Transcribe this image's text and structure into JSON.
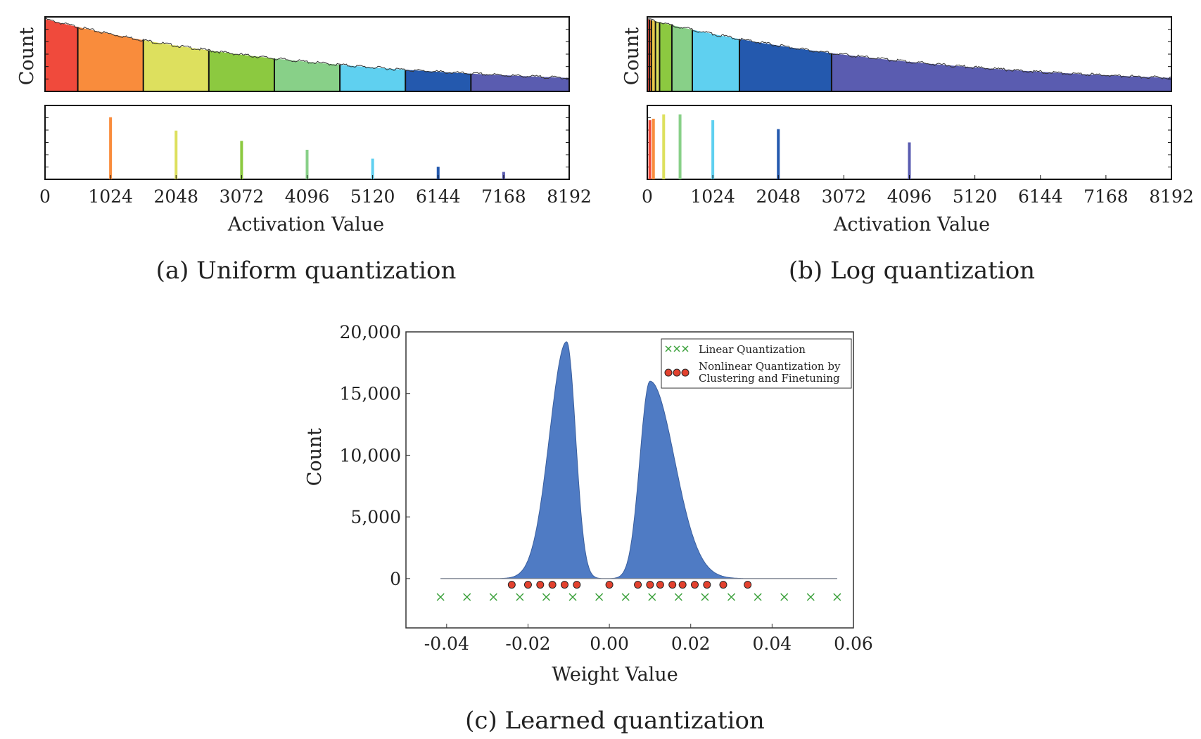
{
  "chart_data": [
    {
      "id": "a",
      "type": "area",
      "caption": "(a) Uniform quantization",
      "xlabel": "Activation Value",
      "ylabel": "Count",
      "xlim": [
        0,
        8192
      ],
      "xticks": [
        "0",
        "1024",
        "2048",
        "3072",
        "4096",
        "5120",
        "6144",
        "7168",
        "8192"
      ],
      "bin_edges": [
        0,
        512,
        1536,
        2560,
        3584,
        4608,
        5632,
        6656,
        8192
      ],
      "bin_colors": [
        "#f04a3c",
        "#f98c3c",
        "#dde05e",
        "#8cc940",
        "#88d088",
        "#5fd0f0",
        "#2459ae",
        "#5a5cb0"
      ],
      "levels": [
        {
          "x": 1024,
          "height": 0.84,
          "color": "#f98c3c"
        },
        {
          "x": 2048,
          "height": 0.66,
          "color": "#dde05e"
        },
        {
          "x": 3072,
          "height": 0.52,
          "color": "#8cc940"
        },
        {
          "x": 4096,
          "height": 0.4,
          "color": "#88d088"
        },
        {
          "x": 5120,
          "height": 0.28,
          "color": "#5fd0f0"
        },
        {
          "x": 6144,
          "height": 0.17,
          "color": "#2459ae"
        },
        {
          "x": 7168,
          "height": 0.1,
          "color": "#5a5cb0"
        }
      ]
    },
    {
      "id": "b",
      "type": "area",
      "caption": "(b) Log quantization",
      "xlabel": "Activation Value",
      "ylabel": "Count",
      "xlim": [
        0,
        8192
      ],
      "xticks": [
        "0",
        "1024",
        "2048",
        "3072",
        "4096",
        "5120",
        "6144",
        "7168",
        "8192"
      ],
      "bin_edges": [
        0,
        32,
        64,
        128,
        192,
        384,
        704,
        1440,
        2880,
        8192
      ],
      "bin_colors": [
        "#f04a3c",
        "#f98c3c",
        "#e8c84a",
        "#dde05e",
        "#8cc940",
        "#88d088",
        "#5fd0f0",
        "#2459ae",
        "#5a5cb0"
      ],
      "levels": [
        {
          "x": 40,
          "height": 0.8,
          "color": "#f04a3c"
        },
        {
          "x": 96,
          "height": 0.82,
          "color": "#f98c3c"
        },
        {
          "x": 256,
          "height": 0.88,
          "color": "#dde05e"
        },
        {
          "x": 512,
          "height": 0.88,
          "color": "#88d088"
        },
        {
          "x": 1024,
          "height": 0.8,
          "color": "#5fd0f0"
        },
        {
          "x": 2048,
          "height": 0.68,
          "color": "#2459ae"
        },
        {
          "x": 4096,
          "height": 0.5,
          "color": "#5a5cb0"
        }
      ]
    },
    {
      "id": "c",
      "type": "area",
      "caption": "(c) Learned quantization",
      "xlabel": "Weight Value",
      "ylabel": "Count",
      "xlim": [
        -0.05,
        0.06
      ],
      "ylim": [
        -4000,
        20000
      ],
      "xticks": [
        -0.04,
        -0.02,
        0.0,
        0.02,
        0.04,
        0.06
      ],
      "xtick_labels": [
        "-0.04",
        "-0.02",
        "0.00",
        "0.02",
        "0.04",
        "0.06"
      ],
      "yticks": [
        0,
        5000,
        10000,
        15000,
        20000
      ],
      "ytick_labels": [
        "0",
        "5,000",
        "10,000",
        "15,000",
        "20,000"
      ],
      "peaks": [
        {
          "center": -0.0105,
          "peak": 19200,
          "sigma_left": 0.0042,
          "sigma_right": 0.0022
        },
        {
          "center": 0.01,
          "peak": 16000,
          "sigma_left": 0.0025,
          "sigma_right": 0.006
        }
      ],
      "hist_color": "#4f7bc4",
      "series": [
        {
          "name": "Linear Quantization",
          "marker": "x",
          "color": "#3aa03a",
          "y": -1500,
          "x": [
            -0.0415,
            -0.035,
            -0.0285,
            -0.022,
            -0.0155,
            -0.009,
            -0.0025,
            0.004,
            0.0105,
            0.017,
            0.0235,
            0.03,
            0.0365,
            0.043,
            0.0495,
            0.056
          ]
        },
        {
          "name": "Nonlinear Quantization by Clustering and Finetuning",
          "name_lines": [
            "Nonlinear Quantization by",
            "Clustering and Finetuning"
          ],
          "marker": "o",
          "color": "#e2412e",
          "y": -500,
          "x": [
            -0.024,
            -0.02,
            -0.017,
            -0.014,
            -0.011,
            -0.008,
            0.0,
            0.007,
            0.01,
            0.0125,
            0.0155,
            0.018,
            0.021,
            0.024,
            0.028,
            0.034
          ]
        }
      ],
      "legend": "top-right"
    }
  ]
}
